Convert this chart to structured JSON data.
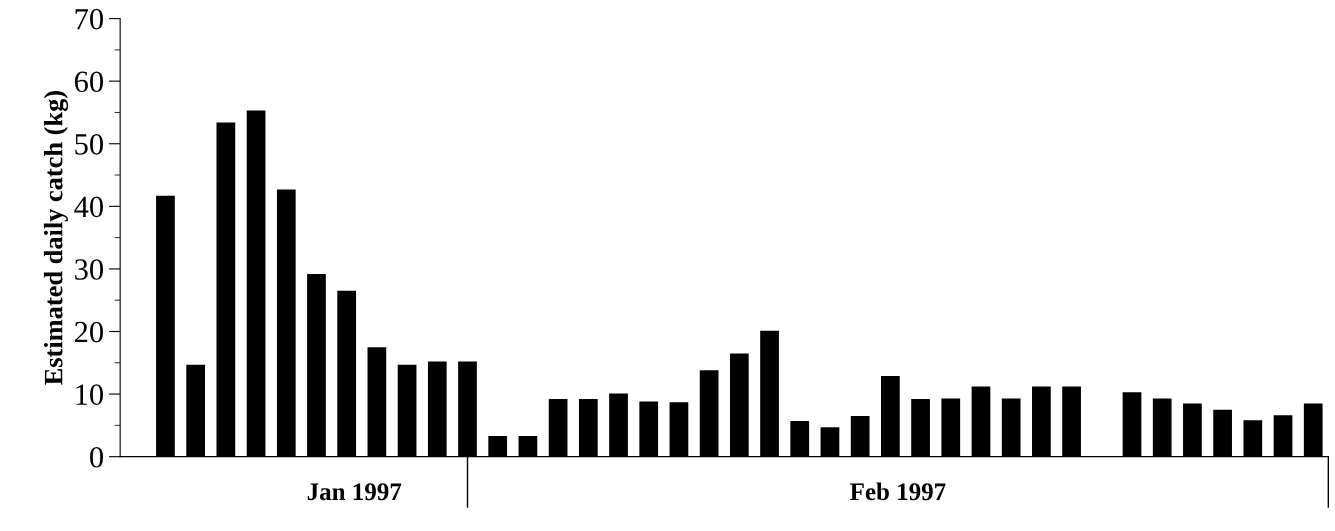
{
  "chart_data": {
    "type": "bar",
    "ylabel": "Estimated daily catch (kg)",
    "color": "#000000",
    "categories": [
      null,
      null,
      null,
      null,
      null,
      null,
      null,
      null,
      null,
      null,
      null,
      null,
      null,
      null,
      null,
      null,
      null,
      null,
      null,
      null,
      null,
      null,
      null,
      null,
      null,
      null,
      null,
      null,
      null,
      null,
      null,
      null,
      null,
      null,
      null,
      null,
      null,
      null,
      null,
      null
    ],
    "values": [
      null,
      41.7,
      14.7,
      53.4,
      55.3,
      42.7,
      29.2,
      26.5,
      17.5,
      14.7,
      15.2,
      15.2,
      3.3,
      3.3,
      9.2,
      9.2,
      10.1,
      8.8,
      8.7,
      13.8,
      16.5,
      20.1,
      5.7,
      4.7,
      6.5,
      12.9,
      9.2,
      9.3,
      11.2,
      9.3,
      11.2,
      11.2,
      null,
      10.3,
      9.3,
      8.5,
      7.5,
      5.8,
      6.6,
      8.5
    ],
    "ylim": [
      0,
      70
    ],
    "yticks": [
      0,
      {
        "value": 5,
        "label": null
      },
      10,
      {
        "value": 15,
        "label": null
      },
      20,
      {
        "value": 25,
        "label": null
      },
      30,
      {
        "value": 35,
        "label": null
      },
      40,
      {
        "value": 45,
        "label": null
      },
      50,
      {
        "value": 55,
        "label": null
      },
      60,
      {
        "value": 65,
        "label": null
      },
      70
    ],
    "annotations": [
      "Jan 1997",
      "Feb 1997"
    ],
    "grid": false,
    "legend": false
  }
}
